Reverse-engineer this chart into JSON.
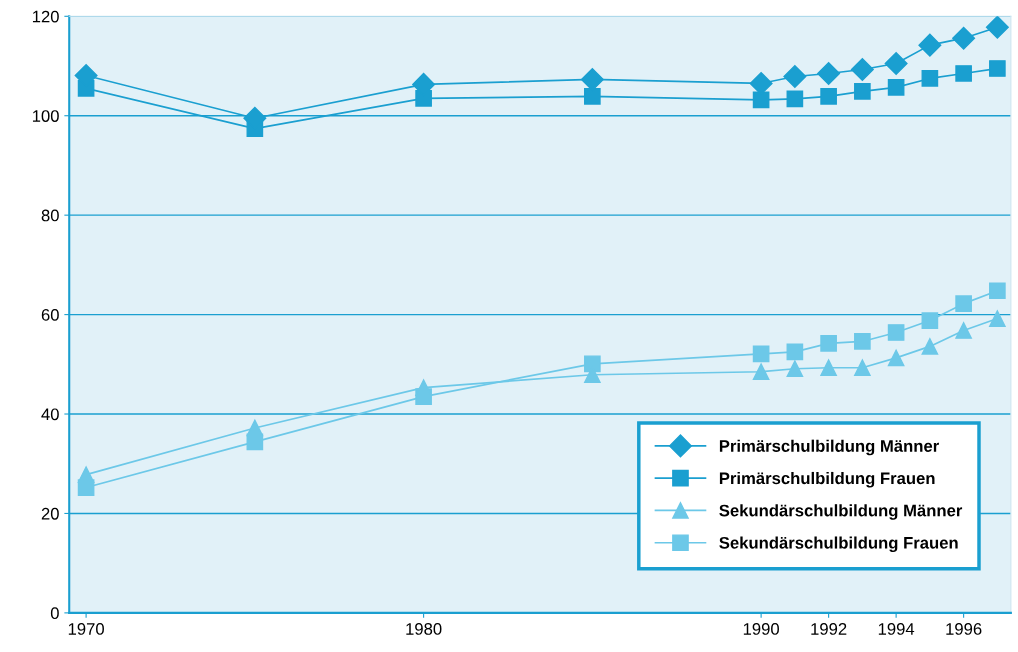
{
  "chart_data": {
    "type": "line",
    "x": [
      1970,
      1975,
      1980,
      1985,
      1990,
      1991,
      1992,
      1993,
      1994,
      1995,
      1996,
      1997
    ],
    "series": [
      {
        "name": "Primärschulbildung Männer",
        "color": "#1a9fd0",
        "marker": "diamond",
        "values": [
          108.1,
          99.5,
          106.3,
          107.3,
          106.5,
          107.9,
          108.5,
          109.3,
          110.5,
          114.2,
          115.6,
          117.8
        ]
      },
      {
        "name": "Primärschulbildung Frauen",
        "color": "#1a9fd0",
        "marker": "square",
        "values": [
          105.5,
          97.4,
          103.5,
          103.9,
          103.2,
          103.4,
          103.9,
          104.9,
          105.7,
          107.5,
          108.5,
          109.5
        ]
      },
      {
        "name": "Sekundärschulbildung Männer",
        "color": "#6cc8e8",
        "marker": "triangle",
        "values": [
          27.8,
          37.2,
          45.3,
          47.9,
          48.5,
          49.1,
          49.3,
          49.3,
          51.3,
          53.6,
          56.8,
          59.2
        ]
      },
      {
        "name": "Sekundärschulbildung Frauen",
        "color": "#6cc8e8",
        "marker": "square",
        "values": [
          25.2,
          34.4,
          43.5,
          50.1,
          52.1,
          52.5,
          54.2,
          54.6,
          56.4,
          58.8,
          62.2,
          64.8
        ]
      }
    ],
    "xlim": [
      1969.5,
      1997.4
    ],
    "xticks": [
      1970,
      1980,
      1990,
      1992,
      1994,
      1996
    ],
    "ylim": [
      0,
      120
    ],
    "yticks": [
      0,
      20,
      40,
      60,
      80,
      100,
      120
    ],
    "grid": "y",
    "legend": "bottom right",
    "line_style": "solid"
  }
}
